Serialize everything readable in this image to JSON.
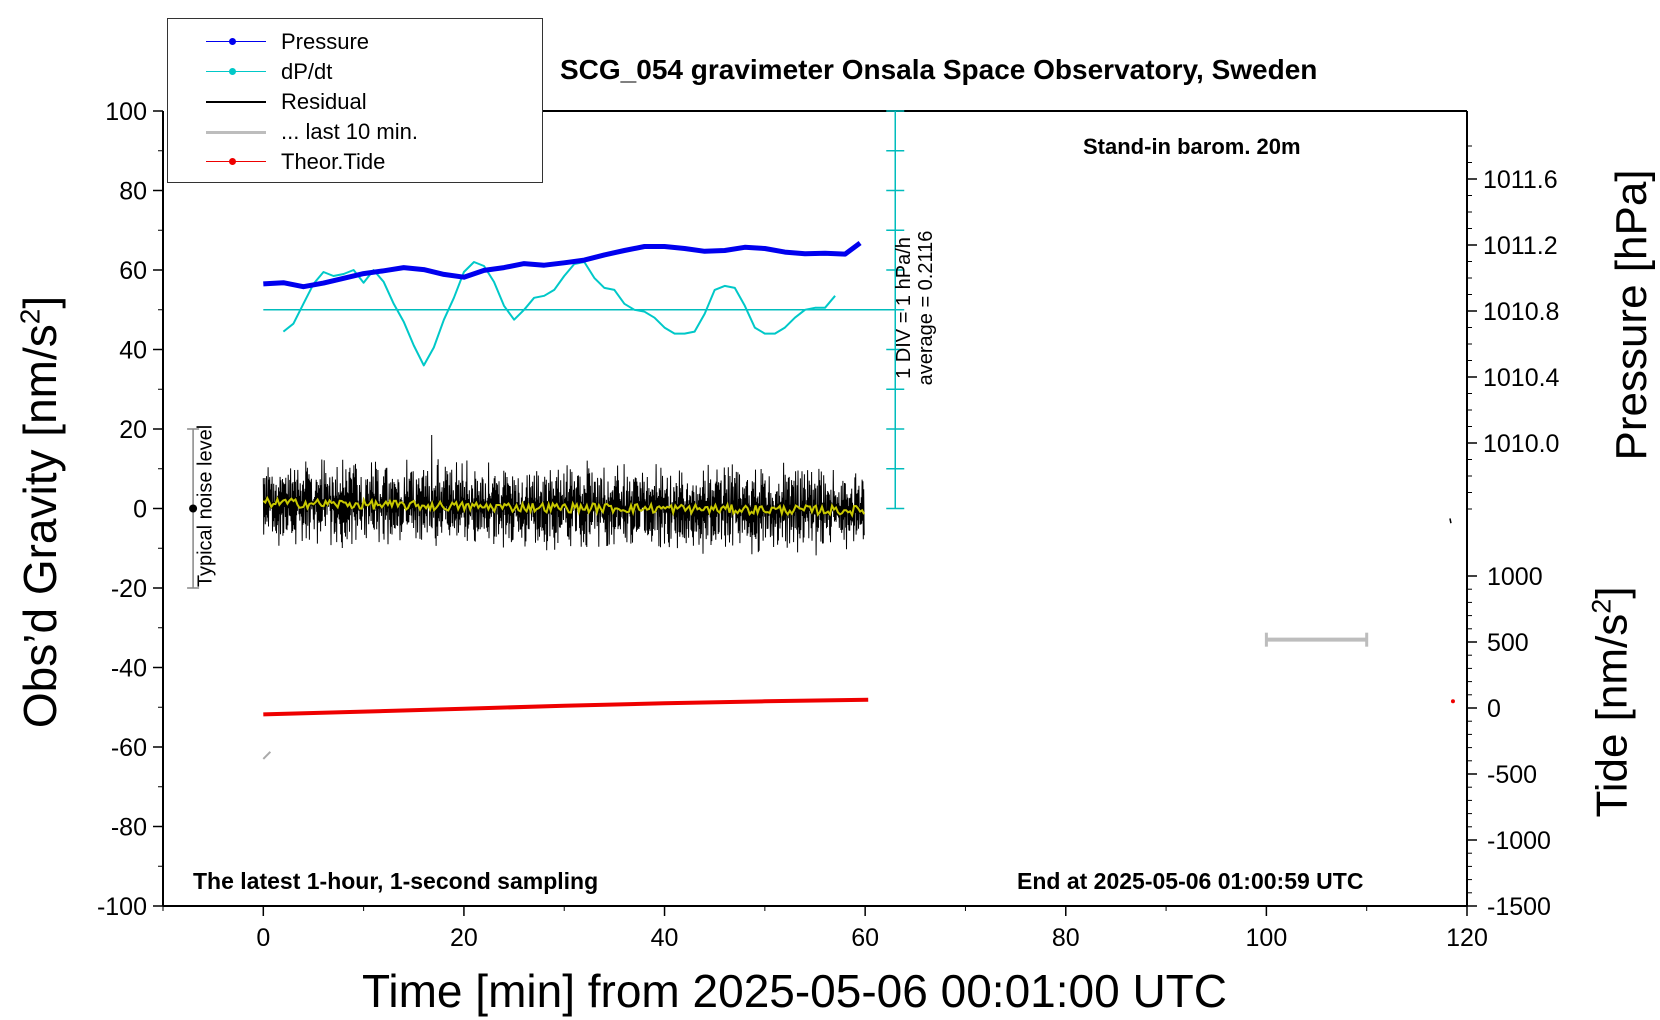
{
  "title": "SCG_054 gravimeter Onsala Space Observatory, Sweden",
  "notes": {
    "barom": "Stand-in barom. 20m",
    "latest": "The latest 1-hour, 1-second sampling",
    "end": "End at 2025-05-06 01:00:59 UTC",
    "noise": "Typical noise level",
    "div_line1": "1 DIV = 1 hPa/h",
    "div_line2": "average = 0.2116"
  },
  "legend": [
    {
      "label": "Pressure",
      "color": "#0000ee",
      "marker": true
    },
    {
      "label": "dP/dt",
      "color": "#00c8c8",
      "marker": true
    },
    {
      "label": "Residual",
      "color": "#000000",
      "marker": false
    },
    {
      "label": "... last 10 min.",
      "color": "#bdbdbd",
      "marker": false
    },
    {
      "label": "Theor.Tide",
      "color": "#ee0000",
      "marker": true
    }
  ],
  "axes": {
    "x_title": "Time [min] from 2025-05-06 00:01:00 UTC",
    "y_left_title_main": "Obs’d Gravity [nm/s",
    "y_left_title_sup": "2",
    "y_left_title_end": "]",
    "y_right_pressure_title": "Pressure [hPa]",
    "y_right_tide_title_main": "Tide [nm/s",
    "y_right_tide_title_sup": "2",
    "y_right_tide_title_end": "]"
  },
  "chart_data": {
    "type": "line",
    "x_range": [
      -10,
      120
    ],
    "x_ticks": [
      "0",
      "20",
      "40",
      "60",
      "80",
      "100",
      "120"
    ],
    "y_left_range": [
      -100,
      100
    ],
    "y_left_ticks": [
      "100",
      "80",
      "60",
      "40",
      "20",
      "0",
      "-20",
      "-40",
      "-60",
      "-80",
      "-100"
    ],
    "pressure_ticks": [
      "1011.6",
      "1011.2",
      "1010.8",
      "1010.4",
      "1010.0"
    ],
    "pressure_tick_values": [
      1011.6,
      1011.2,
      1010.8,
      1010.4,
      1010.0
    ],
    "tide_ticks": [
      "1000",
      "500",
      "0",
      "-500",
      "-1000",
      "-1500"
    ],
    "tide_tick_values": [
      1000,
      500,
      0,
      -500,
      -1000,
      -1500
    ],
    "series": [
      {
        "name": "Pressure",
        "color": "#0000ee",
        "axis": "gravity-equivalent",
        "x": [
          0,
          2,
          4,
          6,
          8,
          10,
          12,
          14,
          16,
          18,
          20,
          22,
          24,
          26,
          28,
          30,
          32,
          34,
          36,
          38,
          40,
          42,
          44,
          46,
          48,
          50,
          52,
          54,
          56,
          58,
          59.5
        ],
        "y": [
          56.5,
          56.8,
          55.8,
          56.7,
          57.9,
          59.1,
          59.8,
          60.6,
          60.1,
          58.9,
          58.2,
          59.9,
          60.6,
          61.6,
          61.2,
          61.8,
          62.5,
          63.8,
          64.9,
          65.9,
          65.9,
          65.4,
          64.7,
          64.9,
          65.7,
          65.4,
          64.5,
          64.1,
          64.2,
          64.0,
          66.8
        ]
      },
      {
        "name": "dP/dt",
        "color": "#00c8c8",
        "axis": "gravity-equivalent",
        "x": [
          2,
          3,
          4,
          5,
          6,
          7,
          8,
          9,
          10,
          11,
          12,
          13,
          14,
          15,
          16,
          17,
          18,
          19,
          20,
          21,
          22,
          23,
          24,
          25,
          26,
          27,
          28,
          29,
          30,
          31,
          32,
          33,
          34,
          35,
          36,
          37,
          38,
          39,
          40,
          41,
          42,
          43,
          44,
          45,
          46,
          47,
          48,
          49,
          50,
          51,
          52,
          53,
          54,
          55,
          56,
          57
        ],
        "y": [
          44.5,
          46.5,
          51.5,
          56.5,
          59.5,
          58.5,
          59.0,
          60.0,
          56.8,
          60.0,
          57.0,
          51.5,
          47.0,
          41.0,
          36.0,
          40.5,
          47.5,
          53.0,
          59.5,
          62.0,
          61.0,
          57.0,
          51.0,
          47.5,
          50.0,
          53.0,
          53.5,
          55.0,
          58.5,
          61.5,
          62.0,
          58.0,
          55.5,
          55.0,
          51.5,
          50.0,
          49.5,
          48.0,
          45.5,
          44.0,
          44.0,
          44.5,
          49.0,
          55.0,
          56.0,
          55.5,
          51.0,
          45.5,
          44.0,
          44.0,
          45.5,
          48.0,
          50.0,
          50.5,
          50.5,
          53.5
        ]
      },
      {
        "name": "Residual",
        "color": "#000000",
        "axis": "gravity",
        "x_range": [
          0,
          59.9
        ],
        "samples": 3600,
        "typical_range": [
          -12,
          12
        ],
        "peak": 18.5
      },
      {
        "name": "Residual smoothed",
        "color": "#c8c800",
        "axis": "gravity",
        "x": [
          0,
          10,
          20,
          30,
          40,
          50,
          59.9
        ],
        "y": [
          1.5,
          1.0,
          0.5,
          0.2,
          0.0,
          -0.3,
          -0.5
        ]
      },
      {
        "name": "Theor.Tide",
        "color": "#ee0000",
        "axis": "gravity",
        "x": [
          0,
          10,
          20,
          30,
          40,
          50,
          60.3
        ],
        "y": [
          -51.8,
          -51.1,
          -50.4,
          -49.6,
          -49.0,
          -48.5,
          -48.1
        ]
      }
    ],
    "noise_bar": {
      "x": -7,
      "y_range": [
        -20,
        20
      ],
      "center": 0
    },
    "div_scale": {
      "x": 63,
      "y_range": [
        0,
        100
      ],
      "baseline": 50
    },
    "scale_bar": {
      "x_range": [
        100,
        110
      ],
      "y": -33
    }
  }
}
